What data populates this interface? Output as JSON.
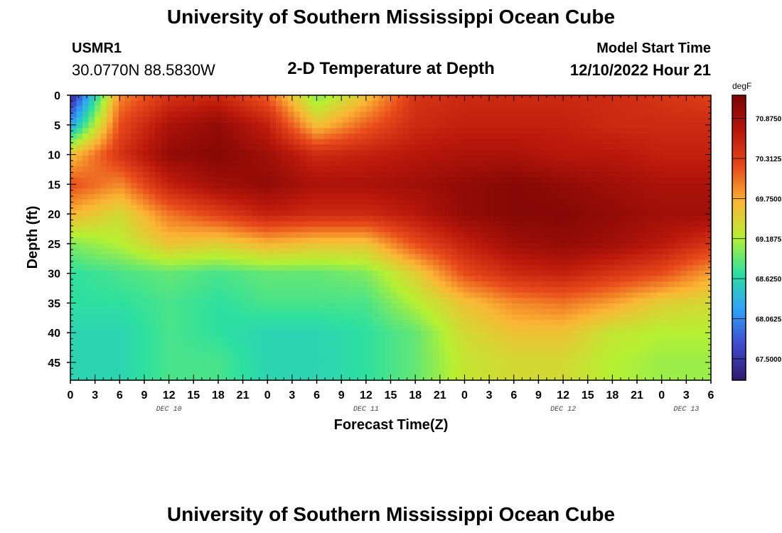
{
  "page": {
    "title": "University of Southern Mississippi Ocean Cube",
    "footer_title": "University of Southern Mississippi Ocean Cube",
    "station": {
      "id": "USMR1",
      "coords": "30.0770N  88.5830W"
    },
    "subtitle": "2-D Temperature at Depth",
    "model_start": {
      "label": "Model Start Time",
      "value": "12/10/2022 Hour 21"
    }
  },
  "chart_data": {
    "type": "heatmap",
    "title": "2-D Temperature at Depth",
    "xlabel": "Forecast Time(Z)",
    "ylabel": "Depth (ft)",
    "x_ticks": [
      "0",
      "3",
      "6",
      "9",
      "12",
      "15",
      "18",
      "21",
      "0",
      "3",
      "6",
      "9",
      "12",
      "15",
      "18",
      "21",
      "0",
      "3",
      "6",
      "9",
      "12",
      "15",
      "18",
      "21",
      "0",
      "3",
      "6"
    ],
    "x_day_labels": [
      {
        "label": "DEC 10",
        "tick_index": 4
      },
      {
        "label": "DEC 11",
        "tick_index": 12
      },
      {
        "label": "DEC 12",
        "tick_index": 20
      },
      {
        "label": "DEC 13",
        "tick_index": 25
      }
    ],
    "y_ticks": [
      0,
      5,
      10,
      15,
      20,
      25,
      30,
      35,
      40,
      45
    ],
    "ylim": [
      0,
      48
    ],
    "x_hours_range": [
      0,
      78
    ],
    "colorbar": {
      "unit": "degF",
      "ticks": [
        "70.8750",
        "70.3125",
        "69.7500",
        "69.1875",
        "68.6250",
        "68.0625",
        "67.5000"
      ],
      "range": [
        67.2,
        71.2
      ],
      "colors": [
        "#2e1a6b",
        "#3f4bd0",
        "#2ea3f8",
        "#2de0a0",
        "#b6f032",
        "#fbb634",
        "#e8491a",
        "#b8170a",
        "#7a0403"
      ]
    },
    "depths_ft": [
      0,
      5,
      10,
      15,
      20,
      25,
      30,
      35,
      40,
      45,
      48
    ],
    "times_hours": [
      0,
      6,
      12,
      18,
      24,
      30,
      36,
      42,
      48,
      54,
      60,
      66,
      72,
      78
    ],
    "values_degF": [
      [
        67.3,
        69.9,
        70.4,
        70.5,
        70.1,
        69.0,
        69.6,
        70.4,
        70.5,
        70.5,
        70.5,
        70.5,
        70.4,
        70.3
      ],
      [
        68.2,
        70.2,
        70.8,
        71.0,
        70.6,
        69.6,
        70.1,
        70.5,
        70.6,
        70.6,
        70.6,
        70.5,
        70.5,
        70.5
      ],
      [
        69.6,
        70.4,
        71.0,
        71.1,
        70.9,
        70.5,
        70.6,
        70.7,
        70.8,
        70.8,
        70.7,
        70.7,
        70.6,
        70.6
      ],
      [
        70.2,
        69.9,
        70.6,
        70.9,
        71.0,
        70.8,
        70.8,
        70.9,
        71.0,
        71.1,
        71.0,
        70.9,
        70.8,
        70.8
      ],
      [
        69.7,
        69.4,
        70.0,
        70.3,
        70.6,
        70.5,
        70.5,
        70.7,
        71.0,
        71.1,
        71.1,
        71.0,
        70.9,
        70.9
      ],
      [
        69.0,
        69.2,
        69.6,
        69.5,
        69.7,
        69.6,
        69.6,
        70.2,
        70.6,
        70.9,
        71.0,
        70.9,
        70.7,
        70.4
      ],
      [
        68.7,
        68.8,
        68.9,
        68.8,
        68.9,
        68.9,
        69.0,
        69.5,
        70.2,
        70.5,
        70.6,
        70.4,
        70.2,
        69.8
      ],
      [
        68.7,
        68.7,
        68.8,
        68.7,
        68.8,
        68.8,
        68.8,
        69.2,
        69.6,
        69.9,
        70.0,
        69.8,
        69.5,
        69.4
      ],
      [
        68.6,
        68.6,
        68.8,
        68.7,
        68.6,
        68.6,
        68.7,
        68.9,
        69.4,
        69.6,
        69.6,
        69.3,
        69.2,
        69.2
      ],
      [
        68.6,
        68.6,
        68.8,
        68.8,
        68.6,
        68.6,
        68.7,
        68.9,
        69.3,
        69.4,
        69.4,
        69.2,
        69.1,
        69.1
      ],
      [
        68.6,
        68.6,
        68.8,
        68.8,
        68.6,
        68.6,
        68.7,
        68.9,
        69.3,
        69.4,
        69.4,
        69.2,
        69.1,
        69.1
      ]
    ]
  }
}
